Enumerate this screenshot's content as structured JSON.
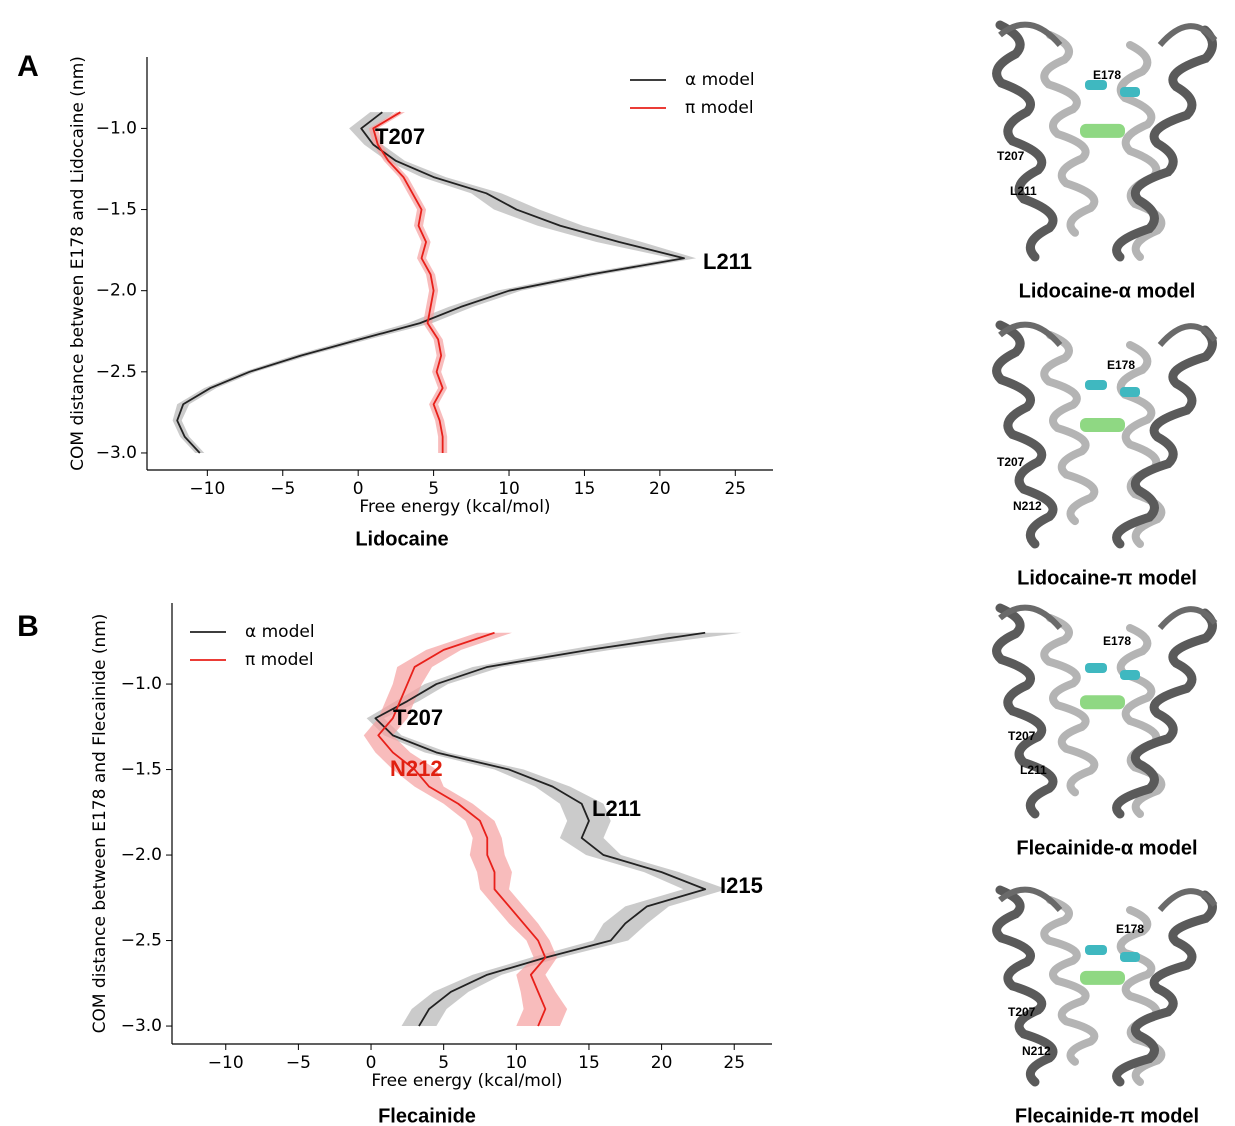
{
  "chart_data": [
    {
      "type": "line",
      "panel": "A",
      "caption": "Lidocaine",
      "xlabel": "Free energy (kcal/mol)",
      "ylabel": "COM distance between E178 and Lidocaine (nm)",
      "xlim": [
        -14,
        27.5
      ],
      "ylim": [
        -3.105,
        -0.56
      ],
      "xticks": [
        {
          "value": -10,
          "label": "−10"
        },
        {
          "value": -5,
          "label": "−5"
        },
        0,
        5,
        10,
        15,
        20,
        25
      ],
      "yticks": [
        {
          "value": -1.0,
          "label": "−1.0"
        },
        {
          "value": -1.5,
          "label": "−1.5"
        },
        {
          "value": -2.0,
          "label": "−2.0"
        },
        {
          "value": -2.5,
          "label": "−2.5"
        },
        {
          "value": -3.0,
          "label": "−3.0"
        }
      ],
      "grid": false,
      "legend": "upper right",
      "y": [
        -0.9,
        -1.0,
        -1.1,
        -1.2,
        -1.3,
        -1.4,
        -1.5,
        -1.6,
        -1.7,
        -1.8,
        -1.9,
        -2.0,
        -2.1,
        -2.2,
        -2.3,
        -2.4,
        -2.5,
        -2.6,
        -2.7,
        -2.8,
        -2.9,
        -3.0
      ],
      "series": [
        {
          "name": "α model",
          "color": "#222222",
          "band_color": "#b5b5b5",
          "values": [
            1.6,
            0.2,
            1.0,
            2.5,
            5,
            8.5,
            10.5,
            13.4,
            17.3,
            21.6,
            15.4,
            10,
            6.8,
            4.1,
            0.1,
            -3.8,
            -7.2,
            -9.8,
            -11.6,
            -12,
            -11.5,
            -10.5
          ],
          "errors": [
            0.8,
            0.8,
            0.6,
            0.6,
            0.8,
            1.0,
            1.5,
            1.5,
            1.5,
            0.8,
            0.8,
            0.8,
            0.8,
            0.8,
            0.6,
            0.5,
            0.4,
            0.4,
            0.4,
            0.3,
            0.3,
            0.3
          ]
        },
        {
          "name": "π model",
          "color": "#e8201a",
          "band_color": "#f5a0a0",
          "values": [
            2.8,
            1.0,
            1.3,
            2.0,
            3.0,
            3.6,
            4.2,
            4.0,
            4.5,
            4.2,
            4.8,
            5.0,
            4.8,
            4.6,
            5.3,
            5.5,
            5.2,
            5.6,
            5.0,
            5.4,
            5.6,
            5.6
          ],
          "errors": [
            0.3,
            0.3,
            0.3,
            0.3,
            0.3,
            0.3,
            0.3,
            0.3,
            0.3,
            0.3,
            0.3,
            0.3,
            0.3,
            0.3,
            0.3,
            0.3,
            0.3,
            0.3,
            0.3,
            0.3,
            0.3,
            0.3
          ]
        }
      ],
      "annotations": [
        {
          "text": "T207",
          "color": "#000000"
        },
        {
          "text": "L211",
          "color": "#000000"
        }
      ]
    },
    {
      "type": "line",
      "panel": "B",
      "caption": "Flecainide",
      "xlabel": "Free energy (kcal/mol)",
      "ylabel": "COM distance between E178 and Flecainide  (nm)",
      "xlim": [
        -13.7,
        27.6
      ],
      "ylim": [
        -3.105,
        -0.526
      ],
      "xticks": [
        {
          "value": -10,
          "label": "−10"
        },
        {
          "value": -5,
          "label": "−5"
        },
        0,
        5,
        10,
        15,
        20,
        25
      ],
      "yticks": [
        {
          "value": -1.0,
          "label": "−1.0"
        },
        {
          "value": -1.5,
          "label": "−1.5"
        },
        {
          "value": -2.0,
          "label": "−2.0"
        },
        {
          "value": -2.5,
          "label": "−2.5"
        },
        {
          "value": -3.0,
          "label": "−3.0"
        }
      ],
      "grid": false,
      "legend": "upper left",
      "y": [
        -0.7,
        -0.8,
        -0.9,
        -1.0,
        -1.1,
        -1.2,
        -1.3,
        -1.4,
        -1.5,
        -1.6,
        -1.7,
        -1.8,
        -1.9,
        -2.0,
        -2.1,
        -2.2,
        -2.3,
        -2.4,
        -2.5,
        -2.6,
        -2.7,
        -2.8,
        -2.9,
        -3.0
      ],
      "series": [
        {
          "name": "α model",
          "color": "#222222",
          "band_color": "#b5b5b5",
          "values": [
            23,
            15,
            8,
            4.5,
            2.5,
            0.3,
            1.5,
            4.5,
            9.5,
            12.5,
            14.5,
            15,
            14.5,
            16,
            20,
            23,
            19,
            17.5,
            16.5,
            12,
            8,
            5.5,
            4,
            3.3
          ],
          "errors": [
            2.5,
            1.5,
            1.0,
            0.8,
            0.8,
            0.6,
            0.6,
            0.8,
            1.0,
            1.2,
            1.5,
            1.5,
            1.5,
            1.2,
            1.2,
            1.5,
            1.5,
            1.5,
            1.2,
            1.0,
            1.0,
            1.2,
            1.2,
            1.2
          ]
        },
        {
          "name": "π model",
          "color": "#e8201a",
          "band_color": "#f5a0a0",
          "values": [
            8.5,
            5,
            3,
            2.5,
            2,
            1.5,
            0.5,
            1.5,
            3,
            4,
            6,
            7.5,
            8,
            8,
            8.5,
            8.5,
            9.5,
            10.5,
            11.5,
            12,
            11,
            11.5,
            12,
            11.5
          ],
          "errors": [
            1.2,
            1.2,
            1.2,
            1.0,
            1.0,
            1.0,
            1.0,
            1.2,
            1.5,
            1.0,
            1.0,
            1.0,
            1.0,
            1.2,
            1.2,
            1.0,
            1.0,
            1.0,
            0.8,
            0.8,
            1.0,
            1.2,
            1.5,
            1.5
          ]
        }
      ],
      "annotations": [
        {
          "text": "T207",
          "color": "#000000"
        },
        {
          "text": "N212",
          "color": "#e02010"
        },
        {
          "text": "L211",
          "color": "#000000"
        },
        {
          "text": "I215",
          "color": "#000000"
        }
      ]
    }
  ],
  "images": [
    {
      "caption": "Lidocaine-α model",
      "labels": [
        "E178",
        "T207",
        "L211"
      ]
    },
    {
      "caption": "Lidocaine-π model",
      "labels": [
        "E178",
        "T207",
        "N212"
      ]
    },
    {
      "caption": "Flecainide-α model",
      "labels": [
        "E178",
        "T207",
        "L211"
      ]
    },
    {
      "caption": "Flecainide-π model",
      "labels": [
        "E178",
        "T207",
        "N212"
      ]
    }
  ]
}
